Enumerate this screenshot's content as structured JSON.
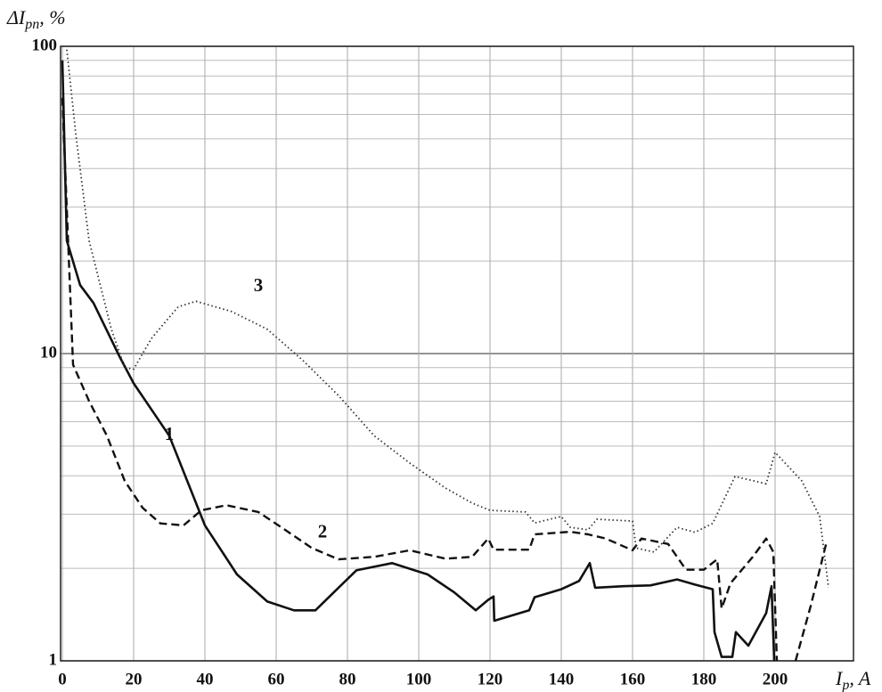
{
  "chart_data": {
    "type": "line",
    "y_label": {
      "main": "ΔI",
      "sub": "pn",
      "suffix": ", %"
    },
    "x_label": {
      "main": "I",
      "sub": "p",
      "suffix": ", A"
    },
    "yscale": "log",
    "xlim": [
      -0.5,
      222
    ],
    "ylim": [
      1,
      100
    ],
    "xticks": [
      0,
      20,
      40,
      60,
      80,
      100,
      120,
      140,
      160,
      180,
      200
    ],
    "yticks": [
      1,
      10,
      100
    ],
    "ygrid_minor": [
      2,
      3,
      4,
      5,
      6,
      7,
      8,
      9,
      20,
      30,
      40,
      50,
      60,
      70,
      80,
      90
    ],
    "grid": true,
    "series": [
      {
        "name": "1",
        "color": "#111111",
        "style": "solid",
        "x": [
          0,
          1.25,
          5,
          8.75,
          16,
          20,
          30,
          40,
          49,
          57.5,
          65,
          71,
          75,
          82.5,
          92.5,
          102.5,
          110,
          116,
          119.5,
          121,
          121.2,
          131,
          132.5,
          140,
          145,
          148,
          149.5,
          157.5,
          165,
          172.5,
          177.5,
          182.5,
          183,
          185,
          188,
          189,
          192.5,
          197.5,
          199,
          199.75
        ],
        "values": [
          90,
          23.3,
          16.7,
          14.6,
          9.8,
          8.0,
          5.4,
          2.76,
          1.91,
          1.56,
          1.46,
          1.46,
          1.62,
          1.97,
          2.08,
          1.91,
          1.67,
          1.46,
          1.58,
          1.62,
          1.35,
          1.46,
          1.61,
          1.71,
          1.82,
          2.08,
          1.73,
          1.75,
          1.76,
          1.84,
          1.77,
          1.71,
          1.24,
          1.03,
          1.03,
          1.24,
          1.12,
          1.43,
          1.75,
          1
        ]
      },
      {
        "name": "2",
        "color": "#111111",
        "style": "dashed",
        "x": [
          0,
          3,
          7.5,
          12.5,
          17.5,
          22.5,
          27.5,
          34,
          39,
          46,
          55,
          62.5,
          70,
          77.5,
          87.5,
          97.5,
          107.5,
          115,
          119.5,
          121,
          131,
          132.5,
          142.5,
          147.5,
          152.5,
          160,
          162.5,
          170,
          175,
          180,
          183.75,
          185,
          187.5,
          193.75,
          197.5,
          199.5,
          200.5,
          203,
          205.75,
          210,
          214.5
        ],
        "values": [
          68,
          9.2,
          7.0,
          5.4,
          3.85,
          3.15,
          2.8,
          2.76,
          3.09,
          3.21,
          3.05,
          2.67,
          2.33,
          2.14,
          2.18,
          2.29,
          2.15,
          2.18,
          2.5,
          2.3,
          2.3,
          2.58,
          2.63,
          2.58,
          2.5,
          2.29,
          2.5,
          2.4,
          1.98,
          1.98,
          2.14,
          1.48,
          1.79,
          2.18,
          2.5,
          2.26,
          1,
          null,
          1,
          1.51,
          2.45
        ]
      },
      {
        "name": "3",
        "color": "#333333",
        "style": "dotted",
        "x": [
          1.25,
          3.75,
          7.5,
          13.75,
          17.5,
          20,
          25,
          32.5,
          37.5,
          47.5,
          57.5,
          67.5,
          77.5,
          87.5,
          97.5,
          107.5,
          115,
          120,
          130,
          132.5,
          140,
          142.5,
          147.5,
          150,
          160,
          161,
          166,
          172.5,
          177.5,
          182.5,
          188.75,
          197.5,
          200,
          207.5,
          212.5,
          215
        ],
        "values": [
          97.5,
          52,
          23.3,
          12.0,
          9.0,
          8.9,
          11.2,
          14.2,
          14.8,
          13.7,
          12.0,
          9.5,
          7.3,
          5.4,
          4.4,
          3.65,
          3.26,
          3.09,
          3.05,
          2.81,
          2.95,
          2.72,
          2.67,
          2.89,
          2.85,
          2.33,
          2.26,
          2.72,
          2.62,
          2.8,
          3.98,
          3.77,
          4.77,
          3.85,
          2.95,
          1.73
        ]
      }
    ],
    "annotations": [
      {
        "text": "1",
        "x": 30,
        "y": 5.4
      },
      {
        "text": "2",
        "x": 73,
        "y": 2.6
      },
      {
        "text": "3",
        "x": 55,
        "y": 16.5
      }
    ]
  }
}
